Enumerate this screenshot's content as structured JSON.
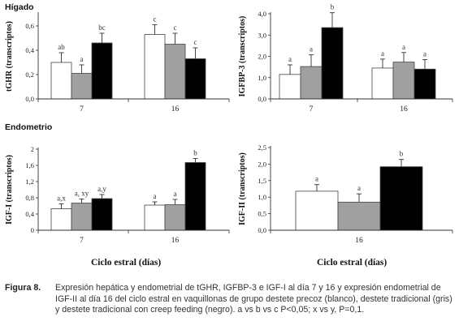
{
  "sections": {
    "liver": "Hígado",
    "endometrium": "Endometrio"
  },
  "xlabel_common": "Ciclo estral (días)",
  "caption": {
    "label": "Figura 8.",
    "text": "Expresión hepática y endometrial de tGHR, IGFBP-3 e IGF-I al día 7 y 16 y expresión endometrial de IGF-II al día 16 del ciclo estral en vaquillonas de grupo destete precoz (blanco), destete tradicional (gris) y destete tradicional con creep feeding (negro). a vs b vs c P<0,05; x vs y, P=0,1."
  },
  "colors": {
    "series": [
      "#ffffff",
      "#a0a0a0",
      "#000000"
    ],
    "bar_stroke": "#444444",
    "axis": "#333333"
  },
  "chart_data": [
    {
      "type": "bar",
      "ylabel": "tGHR (transcriptos)",
      "categories": [
        "7",
        "16"
      ],
      "series": [
        {
          "values": [
            0.3,
            0.53
          ],
          "errors": [
            0.08,
            0.08
          ],
          "labels": [
            "ab",
            "c"
          ]
        },
        {
          "values": [
            0.21,
            0.45
          ],
          "errors": [
            0.07,
            0.09
          ],
          "labels": [
            "a",
            "c"
          ]
        },
        {
          "values": [
            0.46,
            0.33
          ],
          "errors": [
            0.08,
            0.09
          ],
          "labels": [
            "bc",
            "c"
          ]
        }
      ],
      "ylim": [
        0,
        0.7
      ],
      "yticks": [
        "0,0",
        "0,2",
        "0,4",
        "0,6"
      ],
      "ytick_values": [
        0,
        0.2,
        0.4,
        0.6
      ]
    },
    {
      "type": "bar",
      "ylabel": "IGFBP-3 (transcriptos)",
      "categories": [
        "7",
        "16"
      ],
      "series": [
        {
          "values": [
            1.15,
            1.45
          ],
          "errors": [
            0.45,
            0.42
          ],
          "labels": [
            "a",
            "a"
          ]
        },
        {
          "values": [
            1.52,
            1.73
          ],
          "errors": [
            0.55,
            0.45
          ],
          "labels": [
            "a",
            "a"
          ]
        },
        {
          "values": [
            3.35,
            1.4
          ],
          "errors": [
            0.7,
            0.45
          ],
          "labels": [
            "b",
            "a"
          ]
        }
      ],
      "ylim": [
        0,
        4.0
      ],
      "yticks": [
        "0,0",
        "1,0",
        "2,0",
        "3,0",
        "4,0"
      ],
      "ytick_values": [
        0,
        1,
        2,
        3,
        4
      ]
    },
    {
      "type": "bar",
      "ylabel": "IGF-I (transcriptos)",
      "categories": [
        "7",
        "16"
      ],
      "series": [
        {
          "values": [
            0.53,
            0.62
          ],
          "errors": [
            0.12,
            0.08
          ],
          "labels": [
            "a,x",
            "a"
          ]
        },
        {
          "values": [
            0.67,
            0.63
          ],
          "errors": [
            0.1,
            0.13
          ],
          "labels": [
            "a, xy",
            "a"
          ]
        },
        {
          "values": [
            0.78,
            1.67
          ],
          "errors": [
            0.1,
            0.1
          ],
          "labels": [
            "a,y",
            "b"
          ]
        }
      ],
      "ylim": [
        0,
        2
      ],
      "yticks": [
        "0",
        "0,4",
        "0,8",
        "1,2",
        "1,6",
        "2"
      ],
      "ytick_values": [
        0,
        0.4,
        0.8,
        1.2,
        1.6,
        2
      ]
    },
    {
      "type": "bar",
      "ylabel": "IGF-II (transcriptos)",
      "categories": [
        "16"
      ],
      "series": [
        {
          "values": [
            1.18
          ],
          "errors": [
            0.2
          ],
          "labels": [
            "a"
          ]
        },
        {
          "values": [
            0.85
          ],
          "errors": [
            0.25
          ],
          "labels": [
            "a"
          ]
        },
        {
          "values": [
            1.92
          ],
          "errors": [
            0.22
          ],
          "labels": [
            "b"
          ]
        }
      ],
      "ylim": [
        0,
        2.5
      ],
      "yticks": [
        "0,0",
        "0,5",
        "1,0",
        "1,5",
        "2,0",
        "2,5"
      ],
      "ytick_values": [
        0,
        0.5,
        1,
        1.5,
        2,
        2.5
      ]
    }
  ]
}
